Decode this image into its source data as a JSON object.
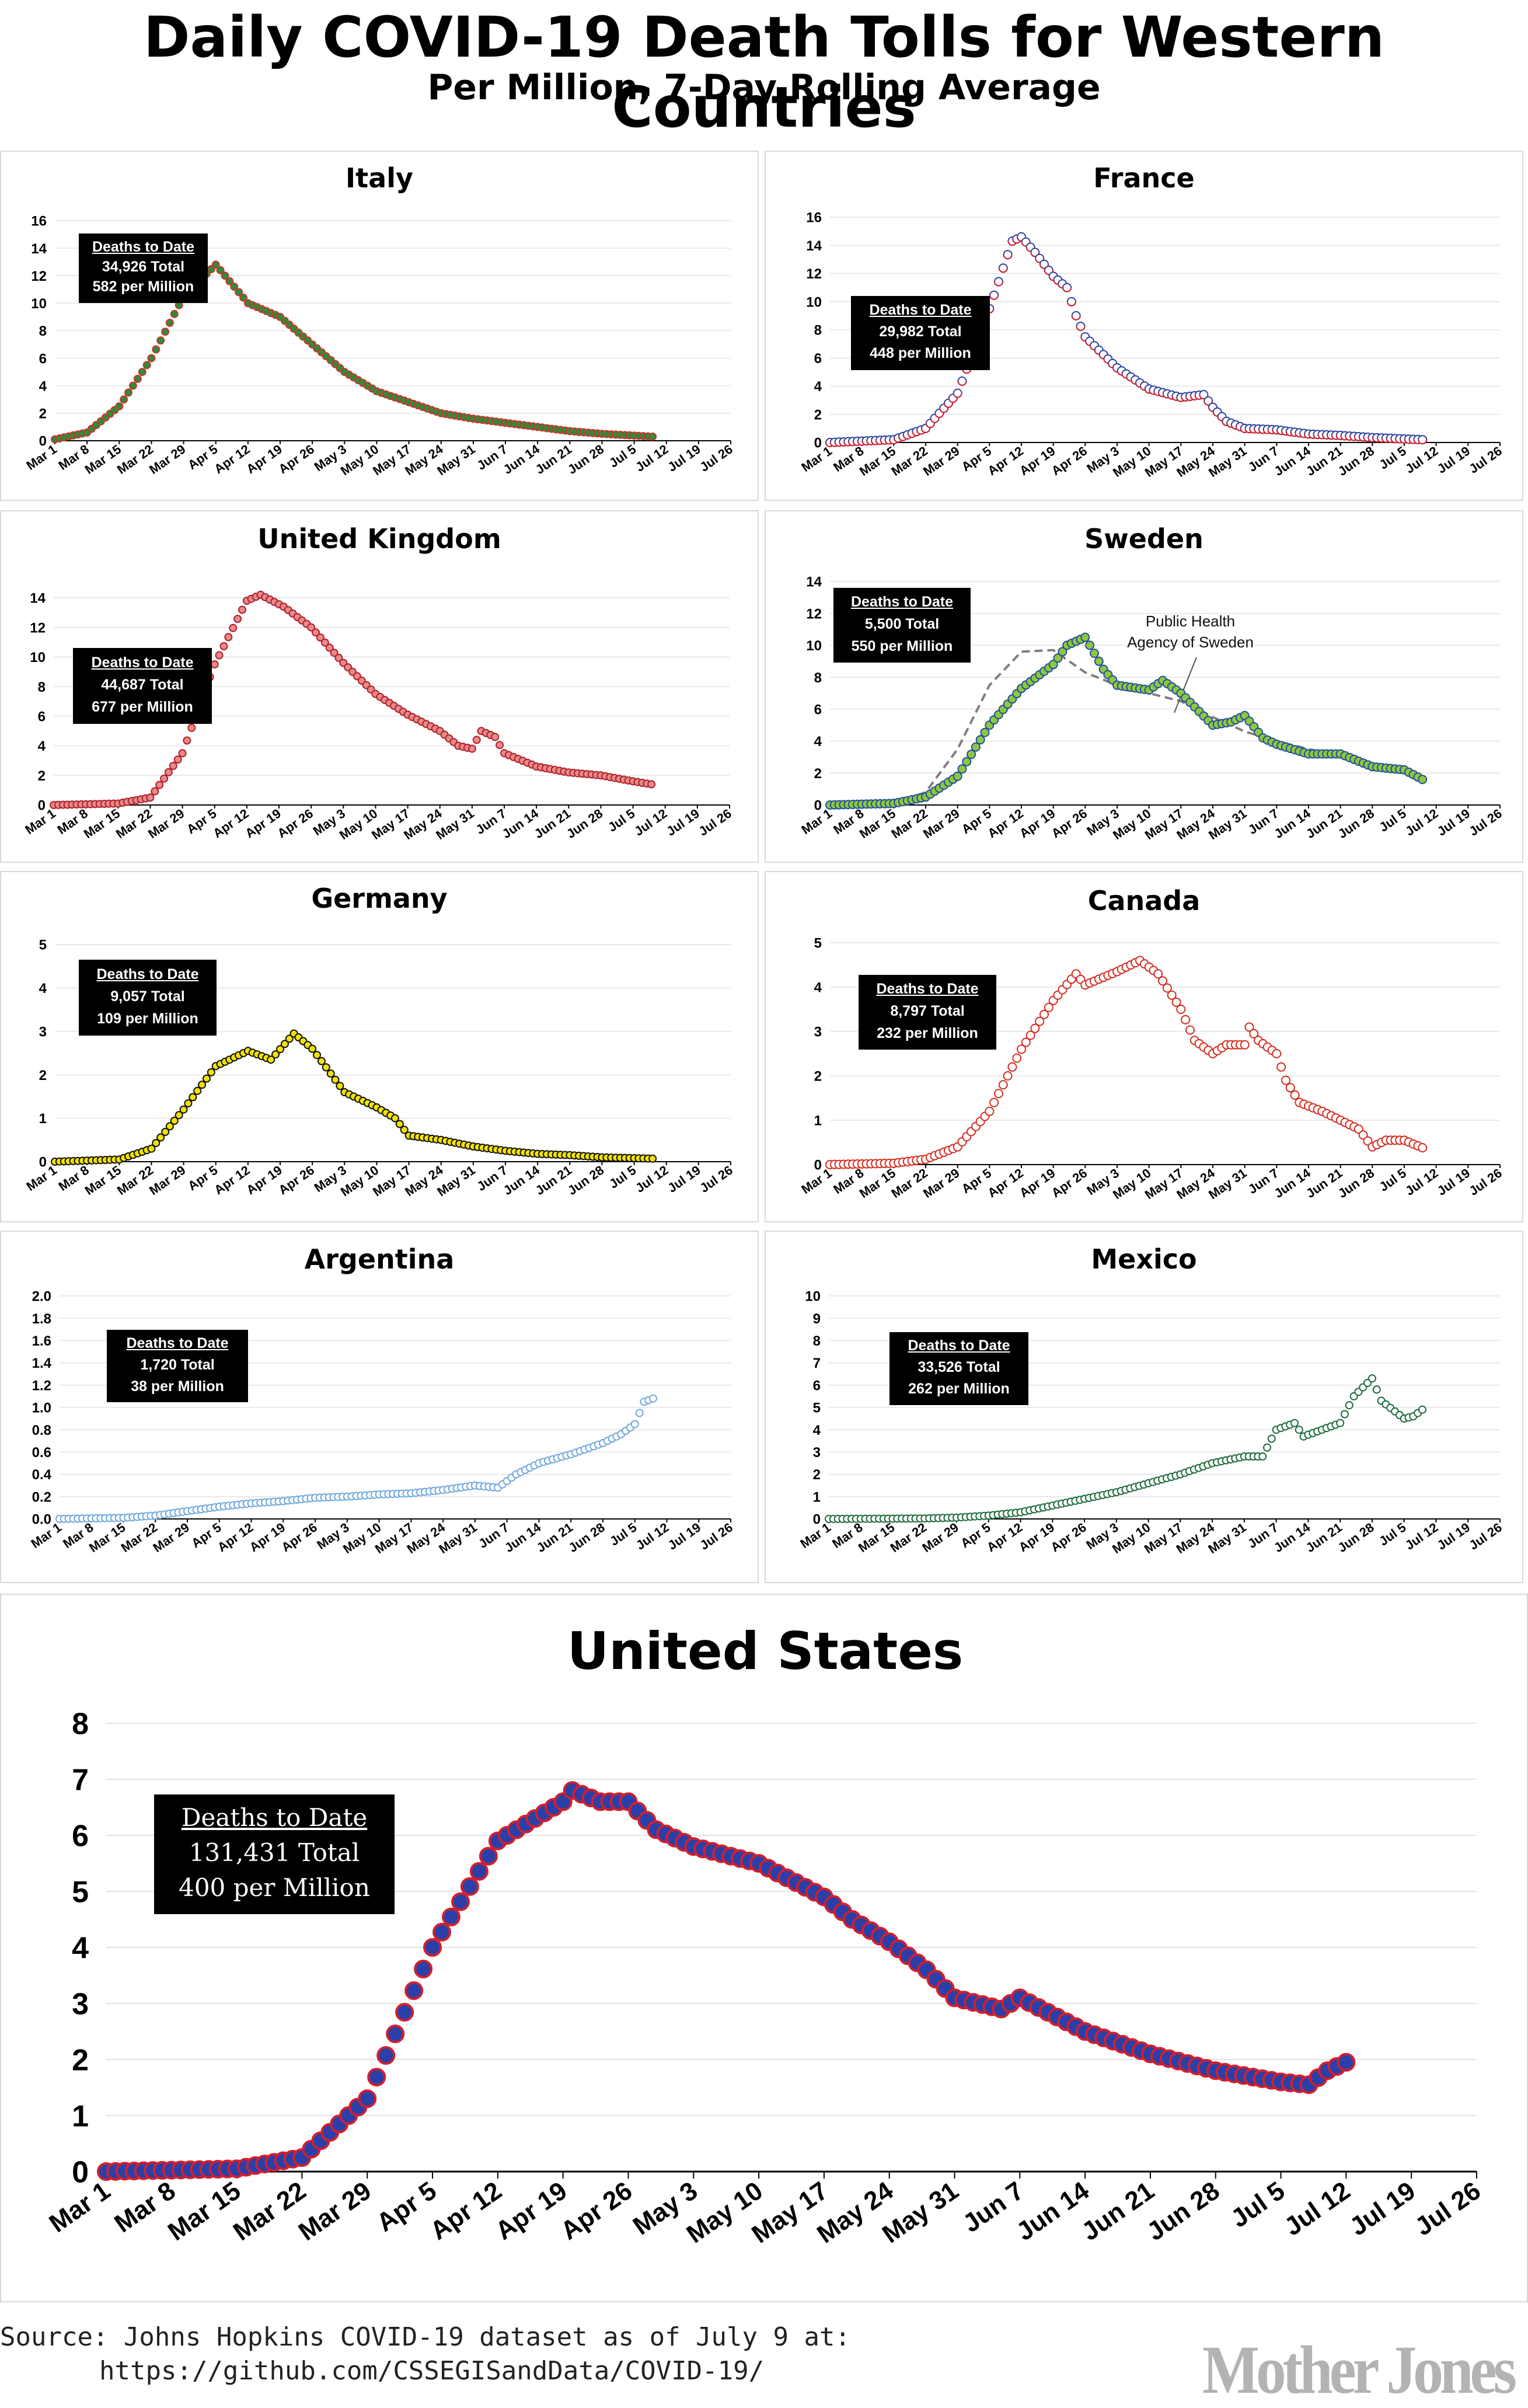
{
  "header": {
    "title": "Daily COVID-19 Death Tolls for Western Countries",
    "subtitle": "Per Million, 7-Day Rolling Average"
  },
  "x_tick_labels": [
    "Mar 1",
    "Mar 8",
    "Mar 15",
    "Mar 22",
    "Mar 29",
    "Apr 5",
    "Apr 12",
    "Apr 19",
    "Apr 26",
    "May 3",
    "May 10",
    "May 17",
    "May 24",
    "May 31",
    "Jun 7",
    "Jun 14",
    "Jun 21",
    "Jun 28",
    "Jul 5",
    "Jul 12",
    "Jul 19",
    "Jul 26"
  ],
  "colors": {
    "italy_fill": "#2e8b3a",
    "italy_edge": "#c8372d",
    "france_fill": "#ffffff",
    "france_edge": "#2b3f9e",
    "france_edge2": "#d0202e",
    "uk_fill": "#e88a8a",
    "uk_edge": "#b0202a",
    "sweden_fill": "#8fc63f",
    "sweden_edge": "#1f4f9e",
    "germany_fill": "#f2e200",
    "germany_edge": "#111111",
    "canada_fill": "#ffffff",
    "canada_edge": "#d52b1e",
    "argentina_fill": "#ffffff",
    "argentina_edge": "#6fa8dc",
    "mexico_fill": "#ffffff",
    "mexico_edge": "#1d6b3a",
    "us_fill": "#2b3fa8",
    "us_edge": "#d0202e",
    "sweden_reference_line": "#7f7f7f",
    "grid": "#e3e3e3"
  },
  "countries": {
    "italy": {
      "title": "Italy",
      "dtd_title": "Deaths to Date",
      "total": "34,926 Total",
      "per_million": "582 per Million"
    },
    "france": {
      "title": "France",
      "dtd_title": "Deaths to Date",
      "total": "29,982 Total",
      "per_million": "448 per Million"
    },
    "uk": {
      "title": "United Kingdom",
      "dtd_title": "Deaths to Date",
      "total": "44,687 Total",
      "per_million": "677 per Million"
    },
    "sweden": {
      "title": "Sweden",
      "dtd_title": "Deaths to Date",
      "total": "5,500 Total",
      "per_million": "550 per Million",
      "annotation": "Public Health Agency of Sweden"
    },
    "germany": {
      "title": "Germany",
      "dtd_title": "Deaths to Date",
      "total": "9,057 Total",
      "per_million": "109 per Million"
    },
    "canada": {
      "title": "Canada",
      "dtd_title": "Deaths to Date",
      "total": "8,797 Total",
      "per_million": "232 per Million"
    },
    "argentina": {
      "title": "Argentina",
      "dtd_title": "Deaths to Date",
      "total": "1,720 Total",
      "per_million": "38 per Million"
    },
    "mexico": {
      "title": "Mexico",
      "dtd_title": "Deaths to Date",
      "total": "33,526 Total",
      "per_million": "262 per Million"
    },
    "us": {
      "title": "United States",
      "dtd_title": "Deaths to Date",
      "total": "131,431 Total",
      "per_million": "400 per Million"
    }
  },
  "footer": {
    "source_line1": "Source: Johns Hopkins COVID-19 dataset as of July 9 at:",
    "source_line2": "https://github.com/CSSEGISandData/COVID-19/",
    "logo_text": "Mother Jones"
  },
  "chart_data": [
    {
      "id": "italy",
      "type": "scatter",
      "title": "Italy",
      "x_start": "Mar 1",
      "x_unit": "day",
      "ylim": [
        0,
        16
      ],
      "yticks": [
        0,
        2,
        4,
        6,
        8,
        10,
        12,
        14,
        16
      ],
      "yformat": "0",
      "grid": true,
      "anchors": [
        [
          0,
          0.1
        ],
        [
          7,
          0.6
        ],
        [
          14,
          2.5
        ],
        [
          21,
          6.0
        ],
        [
          28,
          10.5
        ],
        [
          35,
          12.8
        ],
        [
          36,
          12.4
        ],
        [
          42,
          10.0
        ],
        [
          49,
          9.0
        ],
        [
          56,
          7.0
        ],
        [
          63,
          5.0
        ],
        [
          70,
          3.6
        ],
        [
          77,
          2.8
        ],
        [
          84,
          2.0
        ],
        [
          91,
          1.6
        ],
        [
          98,
          1.3
        ],
        [
          105,
          1.0
        ],
        [
          112,
          0.7
        ],
        [
          119,
          0.5
        ],
        [
          130,
          0.3
        ]
      ]
    },
    {
      "id": "france",
      "type": "scatter",
      "title": "France",
      "x_start": "Mar 1",
      "x_unit": "day",
      "ylim": [
        0,
        16
      ],
      "yticks": [
        0,
        2,
        4,
        6,
        8,
        10,
        12,
        14,
        16
      ],
      "yformat": "0",
      "grid": true,
      "anchors": [
        [
          0,
          0.0
        ],
        [
          14,
          0.2
        ],
        [
          21,
          1.0
        ],
        [
          28,
          3.5
        ],
        [
          35,
          9.5
        ],
        [
          40,
          14.3
        ],
        [
          42,
          14.6
        ],
        [
          45,
          13.5
        ],
        [
          49,
          11.8
        ],
        [
          52,
          11.0
        ],
        [
          54,
          9.0
        ],
        [
          56,
          7.5
        ],
        [
          63,
          5.3
        ],
        [
          70,
          3.8
        ],
        [
          77,
          3.2
        ],
        [
          82,
          3.4
        ],
        [
          84,
          2.5
        ],
        [
          87,
          1.5
        ],
        [
          91,
          1.0
        ],
        [
          98,
          0.9
        ],
        [
          105,
          0.6
        ],
        [
          112,
          0.5
        ],
        [
          119,
          0.35
        ],
        [
          126,
          0.25
        ],
        [
          130,
          0.2
        ]
      ]
    },
    {
      "id": "uk",
      "type": "scatter",
      "title": "United Kingdom",
      "x_start": "Mar 1",
      "x_unit": "day",
      "ylim": [
        0,
        14
      ],
      "yticks": [
        0,
        2,
        4,
        6,
        8,
        10,
        12,
        14
      ],
      "yformat": "0",
      "grid": true,
      "anchors": [
        [
          0,
          0.0
        ],
        [
          14,
          0.1
        ],
        [
          21,
          0.5
        ],
        [
          28,
          3.5
        ],
        [
          35,
          9.5
        ],
        [
          42,
          13.8
        ],
        [
          45,
          14.2
        ],
        [
          50,
          13.4
        ],
        [
          56,
          12.0
        ],
        [
          63,
          9.6
        ],
        [
          70,
          7.5
        ],
        [
          77,
          6.1
        ],
        [
          84,
          5.0
        ],
        [
          88,
          4.0
        ],
        [
          91,
          3.8
        ],
        [
          93,
          5.0
        ],
        [
          96,
          4.6
        ],
        [
          98,
          3.5
        ],
        [
          105,
          2.6
        ],
        [
          112,
          2.2
        ],
        [
          119,
          2.0
        ],
        [
          126,
          1.6
        ],
        [
          130,
          1.4
        ]
      ]
    },
    {
      "id": "sweden",
      "type": "scatter",
      "title": "Sweden",
      "x_start": "Mar 1",
      "x_unit": "day",
      "ylim": [
        0,
        14
      ],
      "yticks": [
        0,
        2,
        4,
        6,
        8,
        10,
        12,
        14
      ],
      "yformat": "0",
      "grid": true,
      "annotation": "Public Health Agency of Sweden",
      "anchors": [
        [
          0,
          0.0
        ],
        [
          14,
          0.1
        ],
        [
          21,
          0.5
        ],
        [
          28,
          1.8
        ],
        [
          35,
          5.0
        ],
        [
          42,
          7.3
        ],
        [
          49,
          8.8
        ],
        [
          52,
          10.0
        ],
        [
          56,
          10.5
        ],
        [
          60,
          8.5
        ],
        [
          63,
          7.5
        ],
        [
          70,
          7.2
        ],
        [
          73,
          7.8
        ],
        [
          77,
          7.0
        ],
        [
          84,
          5.0
        ],
        [
          88,
          5.2
        ],
        [
          91,
          5.6
        ],
        [
          95,
          4.2
        ],
        [
          98,
          3.8
        ],
        [
          105,
          3.2
        ],
        [
          112,
          3.2
        ],
        [
          119,
          2.4
        ],
        [
          126,
          2.2
        ],
        [
          130,
          1.6
        ]
      ],
      "reference_anchors": [
        [
          14,
          0.1
        ],
        [
          21,
          0.8
        ],
        [
          28,
          3.5
        ],
        [
          35,
          7.5
        ],
        [
          42,
          9.6
        ],
        [
          49,
          9.7
        ],
        [
          56,
          8.3
        ],
        [
          63,
          7.5
        ],
        [
          70,
          7.0
        ],
        [
          77,
          6.5
        ],
        [
          84,
          5.5
        ],
        [
          91,
          4.6
        ],
        [
          98,
          4.0
        ],
        [
          105,
          3.5
        ],
        [
          112,
          3.1
        ],
        [
          119,
          2.6
        ],
        [
          126,
          2.1
        ],
        [
          129,
          1.9
        ]
      ]
    },
    {
      "id": "germany",
      "type": "scatter",
      "title": "Germany",
      "x_start": "Mar 1",
      "x_unit": "day",
      "ylim": [
        0,
        5
      ],
      "yticks": [
        0,
        1,
        2,
        3,
        4,
        5
      ],
      "yformat": "0",
      "grid": true,
      "anchors": [
        [
          0,
          0.0
        ],
        [
          14,
          0.05
        ],
        [
          21,
          0.3
        ],
        [
          28,
          1.2
        ],
        [
          35,
          2.2
        ],
        [
          42,
          2.55
        ],
        [
          47,
          2.35
        ],
        [
          52,
          2.95
        ],
        [
          56,
          2.6
        ],
        [
          63,
          1.6
        ],
        [
          70,
          1.25
        ],
        [
          74,
          1.0
        ],
        [
          77,
          0.6
        ],
        [
          84,
          0.5
        ],
        [
          91,
          0.35
        ],
        [
          98,
          0.25
        ],
        [
          105,
          0.18
        ],
        [
          112,
          0.15
        ],
        [
          119,
          0.1
        ],
        [
          126,
          0.08
        ],
        [
          130,
          0.07
        ]
      ]
    },
    {
      "id": "canada",
      "type": "scatter",
      "title": "Canada",
      "x_start": "Mar 1",
      "x_unit": "day",
      "ylim": [
        0,
        5
      ],
      "yticks": [
        0,
        1,
        2,
        3,
        4,
        5
      ],
      "yformat": "0",
      "grid": true,
      "anchors": [
        [
          0,
          0.0
        ],
        [
          14,
          0.03
        ],
        [
          21,
          0.12
        ],
        [
          28,
          0.4
        ],
        [
          35,
          1.2
        ],
        [
          42,
          2.6
        ],
        [
          49,
          3.7
        ],
        [
          54,
          4.3
        ],
        [
          56,
          4.05
        ],
        [
          63,
          4.35
        ],
        [
          68,
          4.6
        ],
        [
          72,
          4.3
        ],
        [
          77,
          3.5
        ],
        [
          80,
          2.8
        ],
        [
          84,
          2.5
        ],
        [
          87,
          2.7
        ],
        [
          91,
          2.7
        ],
        [
          92,
          3.1
        ],
        [
          94,
          2.8
        ],
        [
          98,
          2.5
        ],
        [
          100,
          1.9
        ],
        [
          103,
          1.4
        ],
        [
          108,
          1.2
        ],
        [
          112,
          1.0
        ],
        [
          116,
          0.8
        ],
        [
          119,
          0.4
        ],
        [
          122,
          0.55
        ],
        [
          126,
          0.55
        ],
        [
          130,
          0.38
        ]
      ]
    },
    {
      "id": "argentina",
      "type": "scatter",
      "title": "Argentina",
      "x_start": "Mar 1",
      "x_unit": "day",
      "ylim": [
        0,
        2.0
      ],
      "yticks": [
        0,
        0.2,
        0.4,
        0.6,
        0.8,
        1.0,
        1.2,
        1.4,
        1.6,
        1.8,
        2.0
      ],
      "yformat": "0.0",
      "grid": true,
      "anchors": [
        [
          0,
          0.0
        ],
        [
          14,
          0.01
        ],
        [
          21,
          0.03
        ],
        [
          28,
          0.07
        ],
        [
          35,
          0.11
        ],
        [
          42,
          0.14
        ],
        [
          49,
          0.16
        ],
        [
          56,
          0.19
        ],
        [
          63,
          0.2
        ],
        [
          70,
          0.22
        ],
        [
          77,
          0.23
        ],
        [
          84,
          0.26
        ],
        [
          91,
          0.3
        ],
        [
          96,
          0.28
        ],
        [
          100,
          0.4
        ],
        [
          105,
          0.5
        ],
        [
          112,
          0.58
        ],
        [
          119,
          0.68
        ],
        [
          123,
          0.76
        ],
        [
          126,
          0.85
        ],
        [
          128,
          1.05
        ],
        [
          130,
          1.08
        ]
      ]
    },
    {
      "id": "mexico",
      "type": "scatter",
      "title": "Mexico",
      "x_start": "Mar 1",
      "x_unit": "day",
      "ylim": [
        0,
        10
      ],
      "yticks": [
        0,
        1,
        2,
        3,
        4,
        5,
        6,
        7,
        8,
        9,
        10
      ],
      "yformat": "0",
      "grid": true,
      "anchors": [
        [
          0,
          0.0
        ],
        [
          21,
          0.02
        ],
        [
          28,
          0.06
        ],
        [
          35,
          0.15
        ],
        [
          42,
          0.3
        ],
        [
          49,
          0.6
        ],
        [
          56,
          0.9
        ],
        [
          63,
          1.2
        ],
        [
          70,
          1.6
        ],
        [
          77,
          2.0
        ],
        [
          84,
          2.5
        ],
        [
          91,
          2.8
        ],
        [
          95,
          2.8
        ],
        [
          98,
          4.0
        ],
        [
          102,
          4.3
        ],
        [
          104,
          3.7
        ],
        [
          108,
          4.0
        ],
        [
          112,
          4.3
        ],
        [
          115,
          5.5
        ],
        [
          119,
          6.3
        ],
        [
          121,
          5.3
        ],
        [
          126,
          4.5
        ],
        [
          128,
          4.6
        ],
        [
          130,
          4.9
        ]
      ]
    },
    {
      "id": "us",
      "type": "scatter",
      "title": "United States",
      "x_start": "Mar 1",
      "x_unit": "day",
      "ylim": [
        0,
        8
      ],
      "yticks": [
        0,
        1,
        2,
        3,
        4,
        5,
        6,
        7,
        8
      ],
      "yformat": "0",
      "grid": true,
      "anchors": [
        [
          0,
          0.0
        ],
        [
          14,
          0.05
        ],
        [
          21,
          0.25
        ],
        [
          28,
          1.3
        ],
        [
          35,
          4.0
        ],
        [
          42,
          5.9
        ],
        [
          45,
          6.2
        ],
        [
          49,
          6.6
        ],
        [
          50,
          6.8
        ],
        [
          53,
          6.6
        ],
        [
          56,
          6.6
        ],
        [
          59,
          6.1
        ],
        [
          63,
          5.8
        ],
        [
          70,
          5.5
        ],
        [
          77,
          4.9
        ],
        [
          80,
          4.5
        ],
        [
          84,
          4.1
        ],
        [
          88,
          3.6
        ],
        [
          91,
          3.1
        ],
        [
          96,
          2.9
        ],
        [
          98,
          3.1
        ],
        [
          105,
          2.5
        ],
        [
          112,
          2.1
        ],
        [
          119,
          1.8
        ],
        [
          126,
          1.6
        ],
        [
          129,
          1.55
        ],
        [
          131,
          1.8
        ],
        [
          133,
          1.95
        ]
      ]
    }
  ]
}
